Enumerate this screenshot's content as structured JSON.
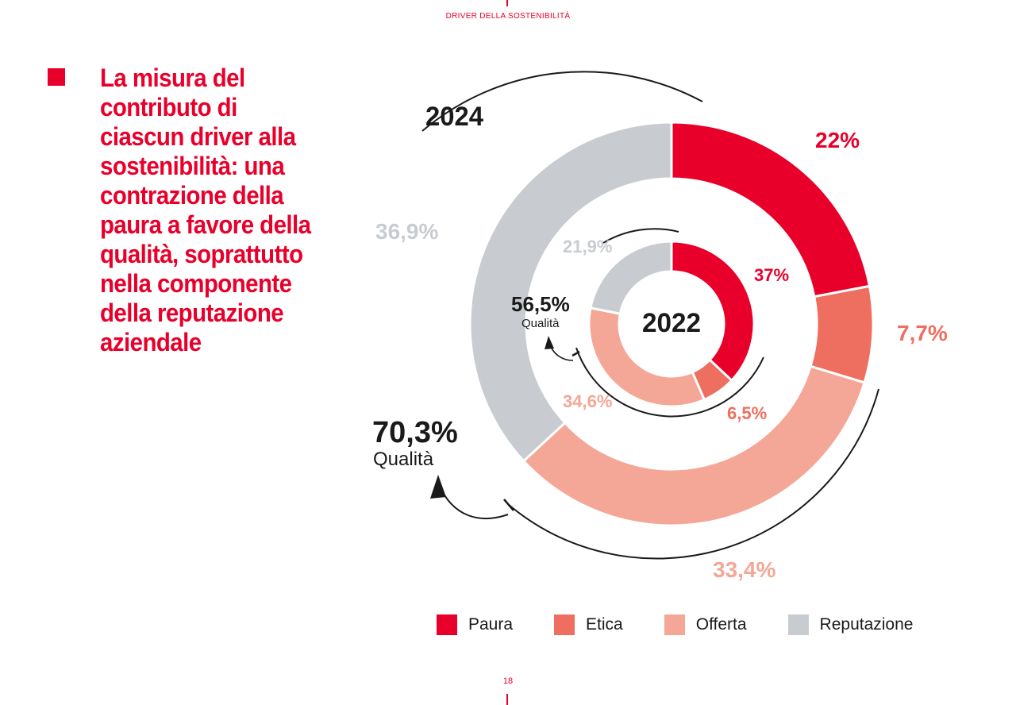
{
  "header": {
    "section_label": "DRIVER DELLA SOSTENIBILITÀ"
  },
  "headline": "La misura del contributo di ciascun driver alla sostenibilità: una contrazione della paura a favore della qualità, soprattutto nella componente della reputazione aziendale",
  "page_number": "18",
  "colors": {
    "Paura": "#e8002b",
    "Etica": "#ee6e60",
    "Offerta": "#f4a796",
    "Reputazione": "#c8ccd0",
    "text_dark": "#1a1a1a"
  },
  "chart_data": {
    "type": "pie",
    "categories": [
      "Paura",
      "Etica",
      "Offerta",
      "Reputazione"
    ],
    "series": [
      {
        "name": "2024",
        "values": [
          22,
          7.7,
          33.4,
          36.9
        ],
        "labels": [
          "22%",
          "7,7%",
          "33,4%",
          "36,9%"
        ]
      },
      {
        "name": "2022",
        "values": [
          37,
          6.5,
          34.6,
          21.9
        ],
        "labels": [
          "37%",
          "6,5%",
          "34,6%",
          "21,9%"
        ]
      }
    ],
    "annotations": {
      "outer_year": "2024",
      "inner_year": "2022",
      "quality_2024_value": "70,3%",
      "quality_2022_value": "56,5%",
      "quality_word": "Qualità"
    }
  },
  "legend": [
    {
      "label": "Paura"
    },
    {
      "label": "Etica"
    },
    {
      "label": "Offerta"
    },
    {
      "label": "Reputazione"
    }
  ]
}
